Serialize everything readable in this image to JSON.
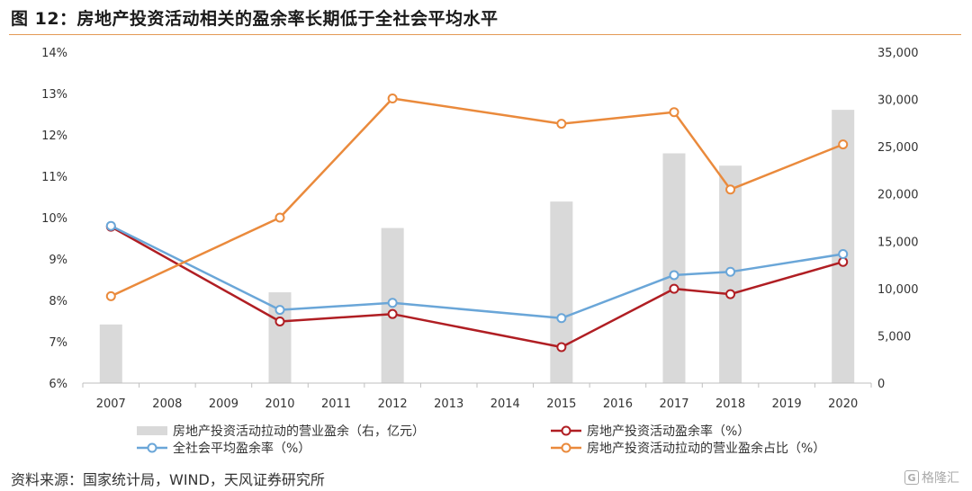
{
  "header": {
    "title": "图 12：房地产投资活动相关的盈余率长期低于全社会平均水平"
  },
  "footer": {
    "source": "资料来源：国家统计局，WIND，天风证券研究所",
    "logo_text": "格隆汇",
    "logo_mark": "G"
  },
  "chart_data": {
    "type": "bar+line",
    "categories": [
      "2007",
      "2008",
      "2009",
      "2010",
      "2011",
      "2012",
      "2013",
      "2014",
      "2015",
      "2016",
      "2017",
      "2018",
      "2019",
      "2020"
    ],
    "y_left": {
      "ylim": [
        6,
        14
      ],
      "ticks": [
        "6%",
        "7%",
        "8%",
        "9%",
        "10%",
        "11%",
        "12%",
        "13%",
        "14%"
      ]
    },
    "y_right": {
      "ylim": [
        0,
        35000
      ],
      "ticks": [
        "0",
        "5,000",
        "10,000",
        "15,000",
        "20,000",
        "25,000",
        "30,000",
        "35,000"
      ]
    },
    "grid": false,
    "legend_position": "bottom",
    "series": [
      {
        "name": "房地产投资活动拉动的营业盈余（右，亿元）",
        "type": "bar",
        "axis": "right",
        "color": "#d9d9d9",
        "values": [
          6200,
          null,
          null,
          9600,
          null,
          16400,
          null,
          null,
          19200,
          null,
          24300,
          23000,
          null,
          28900
        ]
      },
      {
        "name": "房地产投资活动盈余率（%）",
        "type": "line",
        "axis": "left",
        "color": "#b01e23",
        "values": [
          9.78,
          null,
          null,
          7.49,
          null,
          7.67,
          null,
          null,
          6.87,
          null,
          8.28,
          8.15,
          null,
          8.93
        ]
      },
      {
        "name": "全社会平均盈余率（%）",
        "type": "line",
        "axis": "left",
        "color": "#6aa6d8",
        "values": [
          9.8,
          null,
          null,
          7.77,
          null,
          7.94,
          null,
          null,
          7.57,
          null,
          8.61,
          8.69,
          null,
          9.12
        ]
      },
      {
        "name": "房地产投资活动拉动的营业盈余占比（%）",
        "type": "line",
        "axis": "left",
        "color": "#ea8a3c",
        "values": [
          8.1,
          null,
          null,
          10.0,
          null,
          12.88,
          null,
          null,
          12.27,
          null,
          12.55,
          10.68,
          null,
          11.77
        ]
      }
    ]
  }
}
